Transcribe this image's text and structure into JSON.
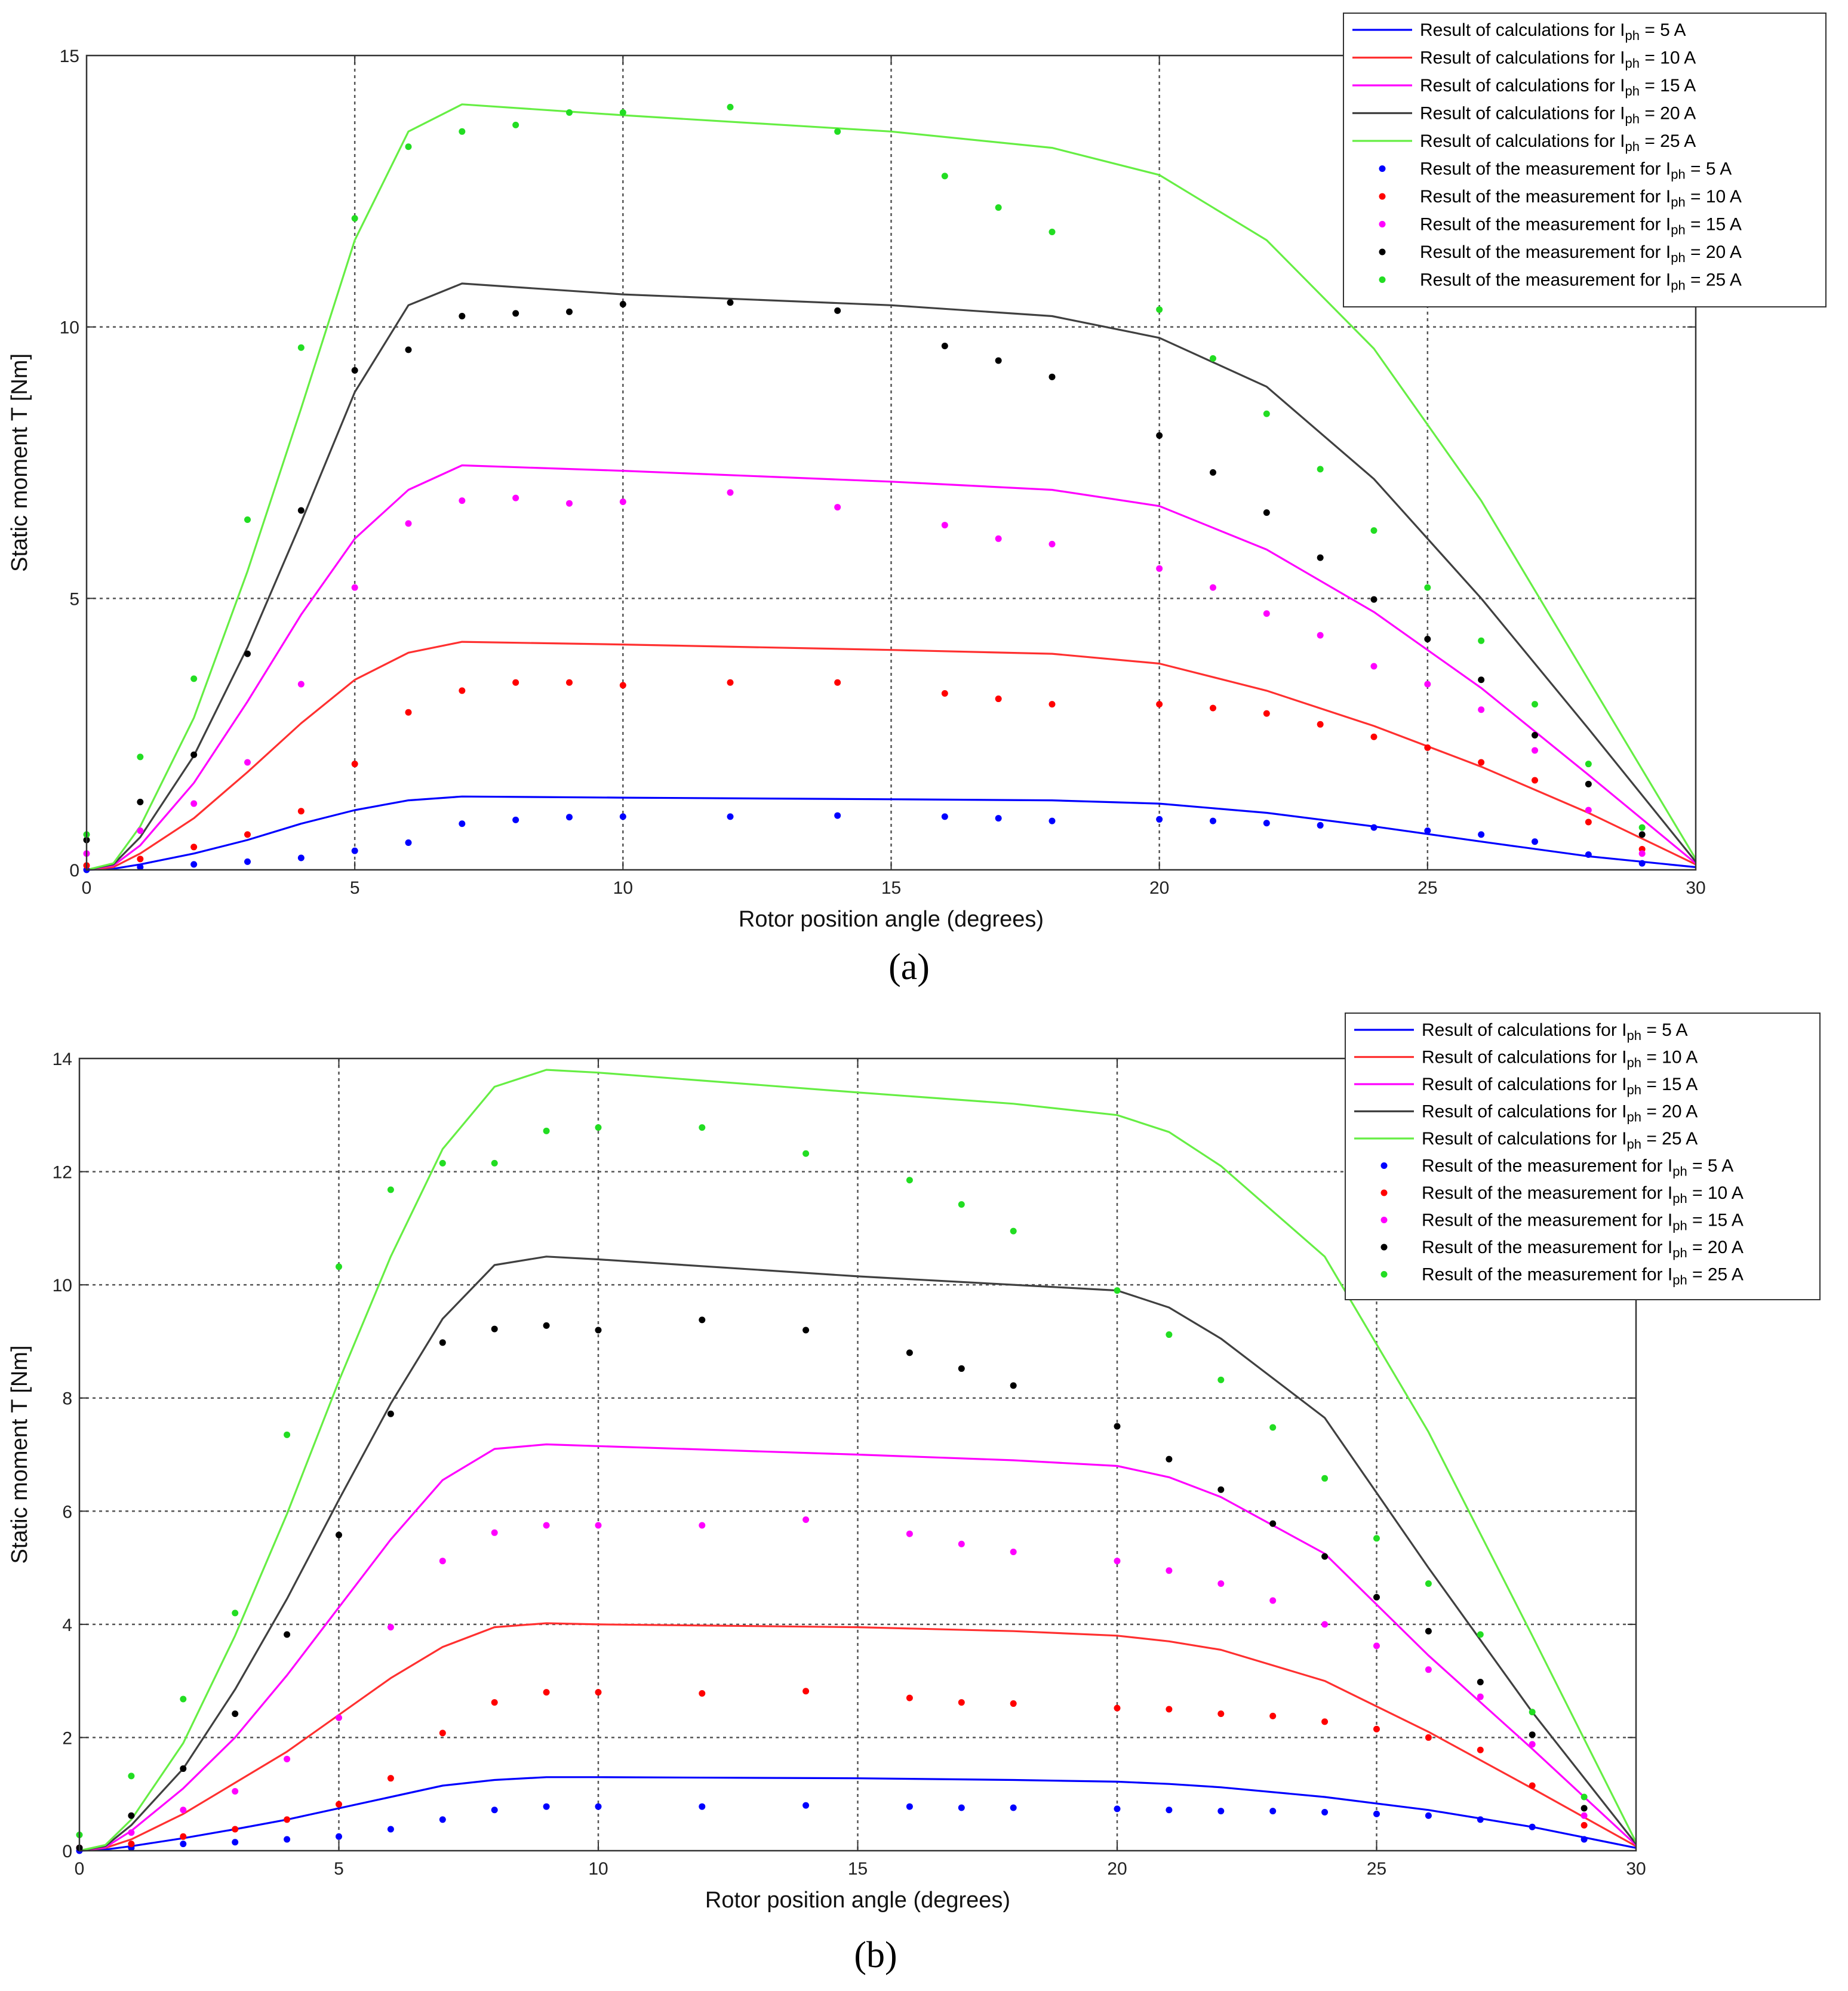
{
  "legend_labels": [
    "Result of calculations for  Iph = 5 A",
    "Result of calculations for  Iph = 10 A",
    "Result of calculations for  Iph = 15 A",
    "Result of calculations for  Iph = 20 A",
    "Result of calculations for  Iph = 25 A",
    "Result of the measurement for  Iph = 5 A",
    "Result of the measurement for  Iph = 10 A",
    "Result of the measurement for  Iph = 15 A",
    "Result of the measurement for  Iph = 20 A",
    "Result of the measurement for  Iph = 25 A"
  ],
  "chart_data": [
    {
      "type": "line",
      "caption": "(a)",
      "xlabel": "Rotor position angle (degrees)",
      "ylabel": "Static moment  T [Nm]",
      "xlim": [
        0,
        30
      ],
      "ylim": [
        0,
        15
      ],
      "xticks": [
        0,
        5,
        10,
        15,
        20,
        25,
        30
      ],
      "yticks": [
        0,
        5,
        10,
        15
      ],
      "grid": true,
      "legend_position": "top-right",
      "calc_x": [
        0,
        0.5,
        1,
        2,
        3,
        4,
        5,
        6,
        7,
        10,
        15,
        18,
        20,
        22,
        24,
        26,
        28,
        30
      ],
      "series": [
        {
          "name": "Result of calculations for  Iph = 5 A",
          "kind": "line",
          "color": "#0000ff",
          "values": [
            0,
            0.02,
            0.1,
            0.3,
            0.55,
            0.85,
            1.1,
            1.28,
            1.35,
            1.33,
            1.3,
            1.28,
            1.22,
            1.05,
            0.8,
            0.52,
            0.25,
            0.05
          ]
        },
        {
          "name": "Result of calculations for  Iph = 10 A",
          "kind": "line",
          "color": "#ff3030",
          "values": [
            0,
            0.05,
            0.3,
            0.95,
            1.8,
            2.7,
            3.5,
            4.0,
            4.2,
            4.15,
            4.05,
            3.98,
            3.8,
            3.3,
            2.65,
            1.9,
            1.05,
            0.1
          ]
        },
        {
          "name": "Result of calculations for  Iph = 15 A",
          "kind": "line",
          "color": "#ff00ff",
          "values": [
            0,
            0.08,
            0.45,
            1.6,
            3.1,
            4.7,
            6.1,
            7.0,
            7.45,
            7.35,
            7.15,
            7.0,
            6.7,
            5.9,
            4.75,
            3.35,
            1.75,
            0.12
          ]
        },
        {
          "name": "Result of calculations for  Iph = 20 A",
          "kind": "line",
          "color": "#404040",
          "values": [
            0,
            0.1,
            0.6,
            2.1,
            4.1,
            6.4,
            8.8,
            10.4,
            10.8,
            10.6,
            10.4,
            10.2,
            9.8,
            8.9,
            7.2,
            5.0,
            2.6,
            0.15
          ]
        },
        {
          "name": "Result of calculations for  Iph = 25 A",
          "kind": "line",
          "color": "#66ee44",
          "values": [
            0,
            0.12,
            0.8,
            2.8,
            5.5,
            8.5,
            11.6,
            13.6,
            14.1,
            13.9,
            13.6,
            13.3,
            12.8,
            11.6,
            9.6,
            6.8,
            3.5,
            0.2
          ]
        },
        {
          "name": "Result of the measurement for  Iph = 5 A",
          "kind": "scatter",
          "color": "#0000ff",
          "x": [
            0,
            1,
            2,
            3,
            4,
            5,
            6,
            7,
            8,
            9,
            10,
            12,
            14,
            16,
            17,
            18,
            20,
            21,
            22,
            23,
            24,
            25,
            26,
            27,
            28,
            29
          ],
          "values": [
            0,
            0.05,
            0.1,
            0.15,
            0.22,
            0.35,
            0.5,
            0.85,
            0.92,
            0.97,
            0.98,
            0.98,
            1.0,
            0.98,
            0.95,
            0.9,
            0.93,
            0.9,
            0.86,
            0.82,
            0.78,
            0.72,
            0.65,
            0.52,
            0.28,
            0.12
          ]
        },
        {
          "name": "Result of the measurement for  Iph = 10 A",
          "kind": "scatter",
          "color": "#ff0000",
          "x": [
            0,
            1,
            2,
            3,
            4,
            5,
            6,
            7,
            8,
            9,
            10,
            12,
            14,
            16,
            17,
            18,
            20,
            21,
            22,
            23,
            24,
            25,
            26,
            27,
            28,
            29
          ],
          "values": [
            0.08,
            0.2,
            0.42,
            0.65,
            1.08,
            1.95,
            2.9,
            3.3,
            3.45,
            3.45,
            3.4,
            3.45,
            3.45,
            3.25,
            3.15,
            3.05,
            3.05,
            2.98,
            2.88,
            2.68,
            2.45,
            2.25,
            1.98,
            1.65,
            0.88,
            0.38
          ]
        },
        {
          "name": "Result of the measurement for  Iph = 15 A",
          "kind": "scatter",
          "color": "#ff00ff",
          "x": [
            0,
            1,
            2,
            3,
            4,
            5,
            6,
            7,
            8,
            9,
            10,
            12,
            14,
            16,
            17,
            18,
            20,
            21,
            22,
            23,
            24,
            25,
            26,
            27,
            28,
            29
          ],
          "values": [
            0.3,
            0.72,
            1.22,
            1.98,
            3.42,
            5.2,
            6.38,
            6.8,
            6.85,
            6.75,
            6.78,
            6.95,
            6.68,
            6.35,
            6.1,
            6.0,
            5.55,
            5.2,
            4.72,
            4.32,
            3.75,
            3.42,
            2.95,
            2.2,
            1.1,
            0.3
          ]
        },
        {
          "name": "Result of the measurement for  Iph = 20 A",
          "kind": "scatter",
          "color": "#000000",
          "x": [
            0,
            1,
            2,
            3,
            4,
            5,
            6,
            7,
            8,
            9,
            10,
            12,
            14,
            16,
            17,
            18,
            20,
            21,
            22,
            23,
            24,
            25,
            26,
            27,
            28,
            29
          ],
          "values": [
            0.55,
            1.25,
            2.12,
            3.98,
            6.62,
            9.2,
            9.58,
            10.2,
            10.25,
            10.28,
            10.42,
            10.45,
            10.3,
            9.65,
            9.38,
            9.08,
            8.0,
            7.32,
            6.58,
            5.75,
            4.98,
            4.25,
            3.5,
            2.48,
            1.58,
            0.65
          ]
        },
        {
          "name": "Result of the measurement for  Iph = 25 A",
          "kind": "scatter",
          "color": "#22dd22",
          "x": [
            0,
            1,
            2,
            3,
            4,
            5,
            6,
            7,
            8,
            9,
            10,
            12,
            14,
            16,
            17,
            18,
            20,
            21,
            22,
            23,
            24,
            25,
            26,
            27,
            28,
            29
          ],
          "values": [
            0.65,
            2.08,
            3.52,
            6.45,
            9.62,
            12.0,
            13.32,
            13.6,
            13.72,
            13.95,
            13.95,
            14.05,
            13.6,
            12.78,
            12.2,
            11.75,
            10.32,
            9.42,
            8.4,
            7.38,
            6.25,
            5.2,
            4.22,
            3.05,
            1.95,
            0.78
          ]
        }
      ]
    },
    {
      "type": "line",
      "caption": "(b)",
      "xlabel": "Rotor position angle (degrees)",
      "ylabel": "Static moment  T [Nm]",
      "xlim": [
        0,
        30
      ],
      "ylim": [
        0,
        14
      ],
      "xticks": [
        0,
        5,
        10,
        15,
        20,
        25,
        30
      ],
      "yticks": [
        0,
        2,
        4,
        6,
        8,
        10,
        12,
        14
      ],
      "grid": true,
      "legend_position": "top-right",
      "calc_x": [
        0,
        0.5,
        1,
        2,
        3,
        4,
        5,
        6,
        7,
        8,
        9,
        10,
        15,
        18,
        20,
        21,
        22,
        24,
        26,
        28,
        30
      ],
      "series": [
        {
          "name": "Result of calculations for  Iph = 5 A",
          "kind": "line",
          "color": "#0000ff",
          "values": [
            0,
            0.02,
            0.08,
            0.22,
            0.38,
            0.55,
            0.75,
            0.95,
            1.15,
            1.25,
            1.3,
            1.3,
            1.28,
            1.25,
            1.22,
            1.18,
            1.12,
            0.95,
            0.72,
            0.42,
            0.05
          ]
        },
        {
          "name": "Result of calculations for  Iph = 10 A",
          "kind": "line",
          "color": "#ff3030",
          "values": [
            0,
            0.05,
            0.2,
            0.65,
            1.2,
            1.75,
            2.4,
            3.05,
            3.6,
            3.95,
            4.02,
            4.0,
            3.95,
            3.88,
            3.8,
            3.7,
            3.55,
            3.0,
            2.1,
            1.1,
            0.08
          ]
        },
        {
          "name": "Result of calculations for  Iph = 15 A",
          "kind": "line",
          "color": "#ff00ff",
          "values": [
            0,
            0.06,
            0.35,
            1.1,
            2.0,
            3.1,
            4.3,
            5.5,
            6.55,
            7.1,
            7.18,
            7.15,
            7.0,
            6.9,
            6.8,
            6.6,
            6.25,
            5.25,
            3.45,
            1.8,
            0.1
          ]
        },
        {
          "name": "Result of calculations for  Iph = 20 A",
          "kind": "line",
          "color": "#404040",
          "values": [
            0,
            0.08,
            0.45,
            1.45,
            2.85,
            4.45,
            6.2,
            7.9,
            9.4,
            10.35,
            10.5,
            10.45,
            10.15,
            10.0,
            9.9,
            9.6,
            9.05,
            7.65,
            5.0,
            2.45,
            0.12
          ]
        },
        {
          "name": "Result of calculations for  Iph = 25 A",
          "kind": "line",
          "color": "#66ee44",
          "values": [
            0,
            0.1,
            0.55,
            1.9,
            3.8,
            5.95,
            8.3,
            10.5,
            12.4,
            13.5,
            13.8,
            13.75,
            13.4,
            13.2,
            13.0,
            12.7,
            12.1,
            10.5,
            7.4,
            3.8,
            0.15
          ]
        },
        {
          "name": "Result of the measurement for  Iph = 5 A",
          "kind": "scatter",
          "color": "#0000ff",
          "x": [
            0,
            1,
            2,
            3,
            4,
            5,
            6,
            7,
            8,
            9,
            10,
            12,
            14,
            16,
            17,
            18,
            20,
            21,
            22,
            23,
            24,
            25,
            26,
            27,
            28,
            29
          ],
          "values": [
            0,
            0.05,
            0.12,
            0.15,
            0.2,
            0.25,
            0.38,
            0.55,
            0.72,
            0.78,
            0.78,
            0.78,
            0.8,
            0.78,
            0.76,
            0.76,
            0.74,
            0.72,
            0.7,
            0.7,
            0.68,
            0.65,
            0.62,
            0.55,
            0.42,
            0.2
          ]
        },
        {
          "name": "Result of the measurement for  Iph = 10 A",
          "kind": "scatter",
          "color": "#ff0000",
          "x": [
            0,
            1,
            2,
            3,
            4,
            5,
            6,
            7,
            8,
            9,
            10,
            12,
            14,
            16,
            17,
            18,
            20,
            21,
            22,
            23,
            24,
            25,
            26,
            27,
            28,
            29
          ],
          "values": [
            0.05,
            0.12,
            0.25,
            0.38,
            0.55,
            0.82,
            1.28,
            2.08,
            2.62,
            2.8,
            2.8,
            2.78,
            2.82,
            2.7,
            2.62,
            2.6,
            2.52,
            2.5,
            2.42,
            2.38,
            2.28,
            2.15,
            2.0,
            1.78,
            1.15,
            0.45
          ]
        },
        {
          "name": "Result of the measurement for  Iph = 15 A",
          "kind": "scatter",
          "color": "#ff00ff",
          "x": [
            0,
            1,
            2,
            3,
            4,
            5,
            6,
            7,
            8,
            9,
            10,
            12,
            14,
            16,
            17,
            18,
            20,
            21,
            22,
            23,
            24,
            25,
            26,
            27,
            28,
            29
          ],
          "values": [
            0.05,
            0.32,
            0.72,
            1.05,
            1.62,
            2.35,
            3.95,
            5.12,
            5.62,
            5.75,
            5.75,
            5.75,
            5.85,
            5.6,
            5.42,
            5.28,
            5.12,
            4.95,
            4.72,
            4.42,
            4.0,
            3.62,
            3.2,
            2.72,
            1.88,
            0.62
          ]
        },
        {
          "name": "Result of the measurement for  Iph = 20 A",
          "kind": "scatter",
          "color": "#000000",
          "x": [
            0,
            1,
            2,
            3,
            4,
            5,
            6,
            7,
            8,
            9,
            10,
            12,
            14,
            16,
            17,
            18,
            20,
            21,
            22,
            23,
            24,
            25,
            26,
            27,
            28,
            29
          ],
          "values": [
            0.05,
            0.62,
            1.45,
            2.42,
            3.82,
            5.58,
            7.72,
            8.98,
            9.22,
            9.28,
            9.2,
            9.38,
            9.2,
            8.8,
            8.52,
            8.22,
            7.5,
            6.92,
            6.38,
            5.78,
            5.2,
            4.48,
            3.88,
            2.98,
            2.05,
            0.75
          ]
        },
        {
          "name": "Result of the measurement for  Iph = 25 A",
          "kind": "scatter",
          "color": "#22dd22",
          "x": [
            0,
            1,
            2,
            3,
            4,
            5,
            6,
            7,
            8,
            9,
            10,
            12,
            14,
            16,
            17,
            18,
            20,
            21,
            22,
            23,
            24,
            25,
            26,
            27,
            28,
            29
          ],
          "values": [
            0.28,
            1.32,
            2.68,
            4.2,
            7.35,
            10.32,
            11.68,
            12.15,
            12.15,
            12.72,
            12.78,
            12.78,
            12.32,
            11.85,
            11.42,
            10.95,
            9.9,
            9.12,
            8.32,
            7.48,
            6.58,
            5.52,
            4.72,
            3.82,
            2.45,
            0.95
          ]
        }
      ]
    }
  ]
}
